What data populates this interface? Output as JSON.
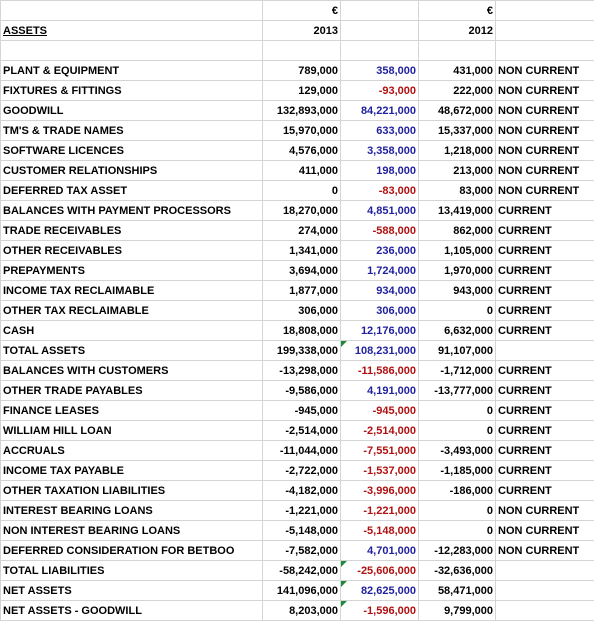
{
  "header": {
    "currency": [
      "€",
      "€"
    ],
    "title": "ASSETS",
    "years": [
      "2013",
      "2012"
    ]
  },
  "colors": {
    "positive": "#1f1f9f",
    "negative": "#b01010"
  },
  "rows": [
    {
      "label": "PLANT & EQUIPMENT",
      "y2013": "789,000",
      "diff": "358,000",
      "y2012": "431,000",
      "class": "NON CURRENT"
    },
    {
      "label": "FIXTURES & FITTINGS",
      "y2013": "129,000",
      "diff": "-93,000",
      "y2012": "222,000",
      "class": "NON CURRENT"
    },
    {
      "label": "GOODWILL",
      "y2013": "132,893,000",
      "diff": "84,221,000",
      "y2012": "48,672,000",
      "class": "NON CURRENT"
    },
    {
      "label": "TM'S & TRADE NAMES",
      "y2013": "15,970,000",
      "diff": "633,000",
      "y2012": "15,337,000",
      "class": "NON CURRENT"
    },
    {
      "label": "SOFTWARE LICENCES",
      "y2013": "4,576,000",
      "diff": "3,358,000",
      "y2012": "1,218,000",
      "class": "NON CURRENT"
    },
    {
      "label": "CUSTOMER RELATIONSHIPS",
      "y2013": "411,000",
      "diff": "198,000",
      "y2012": "213,000",
      "class": "NON CURRENT"
    },
    {
      "label": "DEFERRED TAX ASSET",
      "y2013": "0",
      "diff": "-83,000",
      "y2012": "83,000",
      "class": "NON CURRENT"
    },
    {
      "label": "BALANCES WITH PAYMENT PROCESSORS",
      "y2013": "18,270,000",
      "diff": "4,851,000",
      "y2012": "13,419,000",
      "class": "CURRENT"
    },
    {
      "label": "TRADE RECEIVABLES",
      "y2013": "274,000",
      "diff": "-588,000",
      "y2012": "862,000",
      "class": "CURRENT"
    },
    {
      "label": "OTHER RECEIVABLES",
      "y2013": "1,341,000",
      "diff": "236,000",
      "y2012": "1,105,000",
      "class": "CURRENT"
    },
    {
      "label": "PREPAYMENTS",
      "y2013": "3,694,000",
      "diff": "1,724,000",
      "y2012": "1,970,000",
      "class": "CURRENT"
    },
    {
      "label": "INCOME TAX RECLAIMABLE",
      "y2013": "1,877,000",
      "diff": "934,000",
      "y2012": "943,000",
      "class": "CURRENT"
    },
    {
      "label": "OTHER TAX RECLAIMABLE",
      "y2013": "306,000",
      "diff": "306,000",
      "y2012": "0",
      "class": "CURRENT"
    },
    {
      "label": "CASH",
      "y2013": "18,808,000",
      "diff": "12,176,000",
      "y2012": "6,632,000",
      "class": "CURRENT"
    },
    {
      "label": "TOTAL ASSETS",
      "y2013": "199,338,000",
      "diff": "108,231,000",
      "y2012": "91,107,000"
    },
    {
      "label": "BALANCES WITH CUSTOMERS",
      "y2013": "-13,298,000",
      "diff": "-11,586,000",
      "y2012": "-1,712,000",
      "class": "CURRENT"
    },
    {
      "label": "OTHER TRADE PAYABLES",
      "y2013": "-9,586,000",
      "diff": "4,191,000",
      "y2012": "-13,777,000",
      "class": "CURRENT"
    },
    {
      "label": "FINANCE LEASES",
      "y2013": "-945,000",
      "diff": "-945,000",
      "y2012": "0",
      "class": "CURRENT"
    },
    {
      "label": "WILLIAM HILL LOAN",
      "y2013": "-2,514,000",
      "diff": "-2,514,000",
      "y2012": "0",
      "class": "CURRENT"
    },
    {
      "label": "ACCRUALS",
      "y2013": "-11,044,000",
      "diff": "-7,551,000",
      "y2012": "-3,493,000",
      "class": "CURRENT"
    },
    {
      "label": "INCOME TAX PAYABLE",
      "y2013": "-2,722,000",
      "diff": "-1,537,000",
      "y2012": "-1,185,000",
      "class": "CURRENT"
    },
    {
      "label": "OTHER TAXATION LIABILITIES",
      "y2013": "-4,182,000",
      "diff": "-3,996,000",
      "y2012": "-186,000",
      "class": "CURRENT"
    },
    {
      "label": "INTEREST BEARING LOANS",
      "y2013": "-1,221,000",
      "diff": "-1,221,000",
      "y2012": "0",
      "class": "NON CURRENT"
    },
    {
      "label": "NON INTEREST BEARING LOANS",
      "y2013": "-5,148,000",
      "diff": "-5,148,000",
      "y2012": "0",
      "class": "NON CURRENT"
    },
    {
      "label": "DEFERRED CONSIDERATION FOR BETBOO",
      "y2013": "-7,582,000",
      "diff": "4,701,000",
      "y2012": "-12,283,000",
      "class": "NON CURRENT"
    },
    {
      "label": "TOTAL LIABILITIES",
      "y2013": "-58,242,000",
      "diff": "-25,606,000",
      "y2012": "-32,636,000"
    },
    {
      "label": "NET ASSETS",
      "y2013": "141,096,000",
      "diff": "82,625,000",
      "y2012": "58,471,000"
    },
    {
      "label": "NET ASSETS - GOODWILL",
      "y2013": "8,203,000",
      "diff": "-1,596,000",
      "y2012": "9,799,000"
    }
  ]
}
